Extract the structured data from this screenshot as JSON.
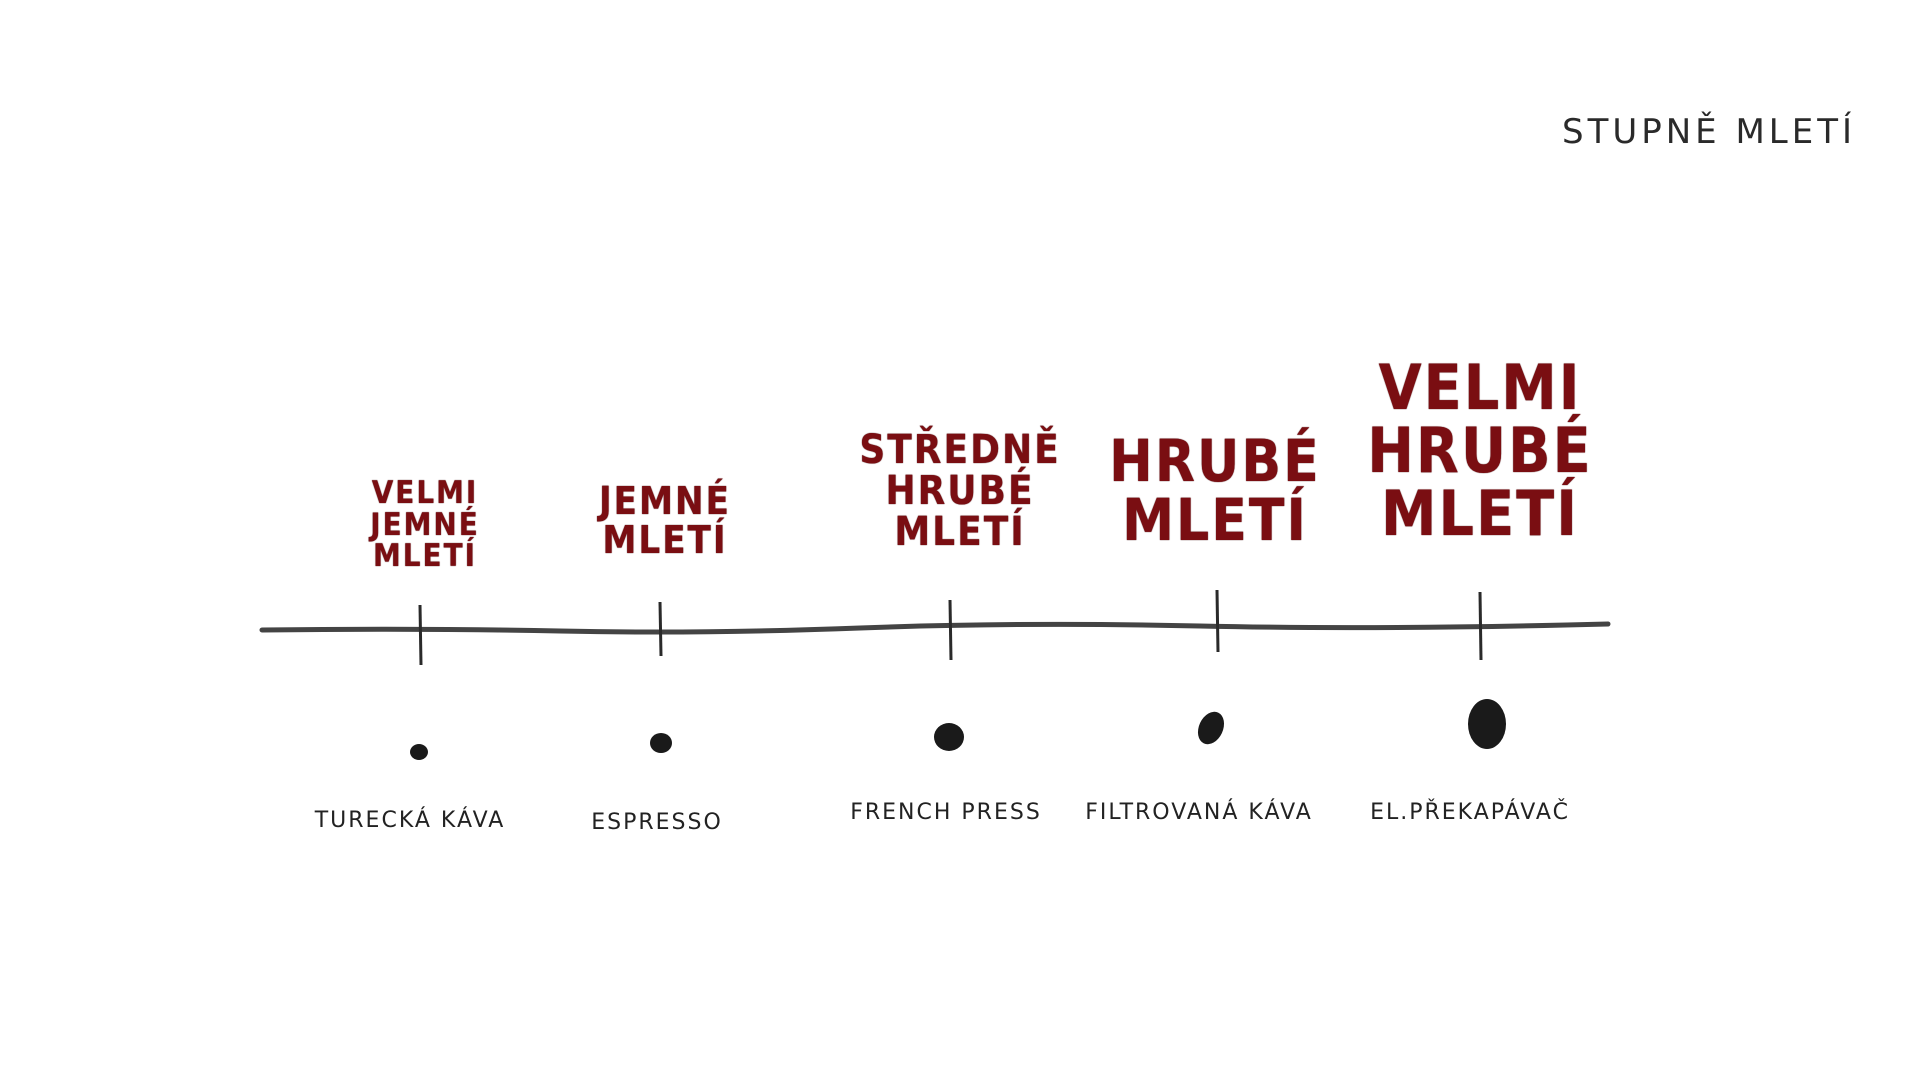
{
  "title": "STUPNĚ MLETÍ",
  "stages": [
    {
      "grind": [
        "VELMI",
        "JEMNÉ",
        "MLETÍ"
      ],
      "method": "TURECKÁ KÁVA"
    },
    {
      "grind": [
        "JEMNÉ",
        "MLETÍ"
      ],
      "method": "ESPRESSO"
    },
    {
      "grind": [
        "STŘEDNĚ",
        "HRUBÉ",
        "MLETÍ"
      ],
      "method": "FRENCH PRESS"
    },
    {
      "grind": [
        "HRUBÉ",
        "MLETÍ"
      ],
      "method": "FILTROVANÁ KÁVA"
    },
    {
      "grind": [
        "VELMI",
        "HRUBÉ",
        "MLETÍ"
      ],
      "method": "EL.PŘEKAPÁVAČ"
    }
  ],
  "colors": {
    "grind_text": "#7a0e12",
    "axis": "#2a2a2a",
    "particle": "#1a1a1a"
  }
}
